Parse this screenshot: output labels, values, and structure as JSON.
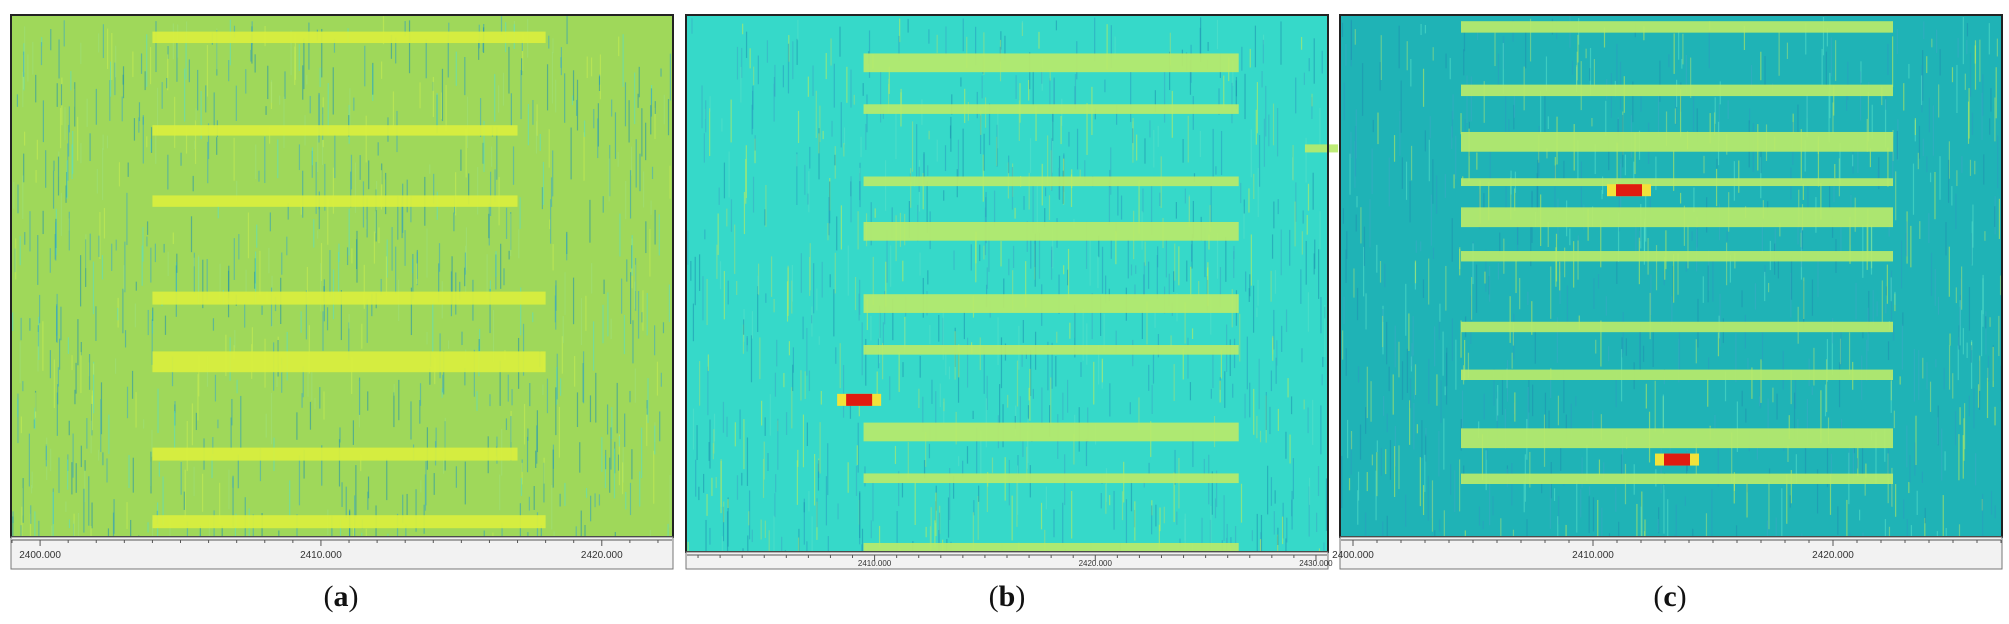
{
  "captions": [
    {
      "open": "(",
      "letter": "a",
      "close": ")"
    },
    {
      "open": "(",
      "letter": "b",
      "close": ")"
    },
    {
      "open": "(",
      "letter": "c",
      "close": ")"
    }
  ],
  "chart_data": [
    {
      "type": "heatmap",
      "panel": "a",
      "background": "#9fd85a",
      "xaxis": {
        "ticks": [
          2400,
          2410,
          2420
        ],
        "tick_labels": [
          "2400.000",
          "2410.000",
          "2420.000"
        ],
        "xlim": [
          2399,
          2422.5
        ]
      },
      "bands": [
        {
          "x0": 2404,
          "x1": 2418,
          "t": 0.03,
          "h": 0.022
        },
        {
          "x0": 2404,
          "x1": 2417,
          "t": 0.21,
          "h": 0.02
        },
        {
          "x0": 2404,
          "x1": 2417,
          "t": 0.345,
          "h": 0.022
        },
        {
          "x0": 2404,
          "x1": 2418,
          "t": 0.53,
          "h": 0.025
        },
        {
          "x0": 2404,
          "x1": 2418,
          "t": 0.645,
          "h": 0.04
        },
        {
          "x0": 2404,
          "x1": 2417,
          "t": 0.83,
          "h": 0.025
        },
        {
          "x0": 2404,
          "x1": 2418,
          "t": 0.96,
          "h": 0.025
        }
      ],
      "hotspots": []
    },
    {
      "type": "heatmap",
      "panel": "b",
      "background": "#36d9c9",
      "xaxis": {
        "ticks": [
          2410,
          2420,
          2430
        ],
        "tick_labels": [
          "2410.000",
          "2420.000",
          "2430.000"
        ],
        "xlim": [
          2401.5,
          2430.5
        ]
      },
      "bands": [
        {
          "x0": 2409.5,
          "x1": 2426.5,
          "t": 0.07,
          "h": 0.035
        },
        {
          "x0": 2409.5,
          "x1": 2426.5,
          "t": 0.165,
          "h": 0.018
        },
        {
          "x0": 2429.5,
          "x1": 2431,
          "t": 0.24,
          "h": 0.015
        },
        {
          "x0": 2409.5,
          "x1": 2426.5,
          "t": 0.3,
          "h": 0.018
        },
        {
          "x0": 2409.5,
          "x1": 2426.5,
          "t": 0.385,
          "h": 0.035
        },
        {
          "x0": 2409.5,
          "x1": 2426.5,
          "t": 0.52,
          "h": 0.035
        },
        {
          "x0": 2409.5,
          "x1": 2426.5,
          "t": 0.615,
          "h": 0.018
        },
        {
          "x0": 2409.5,
          "x1": 2426.5,
          "t": 0.76,
          "h": 0.035
        },
        {
          "x0": 2409.5,
          "x1": 2426.5,
          "t": 0.855,
          "h": 0.018
        },
        {
          "x0": 2409.5,
          "x1": 2426.5,
          "t": 0.985,
          "h": 0.015
        }
      ],
      "hotspots": [
        {
          "x": 2409.3,
          "t": 0.7175
        }
      ]
    },
    {
      "type": "heatmap",
      "panel": "c",
      "background": "#1fb3b6",
      "xaxis": {
        "ticks": [
          2400,
          2410,
          2420
        ],
        "tick_labels": [
          "2400.000",
          "2410.000",
          "2420.000"
        ],
        "xlim": [
          2399.5,
          2427
        ]
      },
      "bands": [
        {
          "x0": 2404.5,
          "x1": 2422.5,
          "t": 0.01,
          "h": 0.022
        },
        {
          "x0": 2404.5,
          "x1": 2422.5,
          "t": 0.132,
          "h": 0.022
        },
        {
          "x0": 2404.5,
          "x1": 2422.5,
          "t": 0.223,
          "h": 0.038
        },
        {
          "x0": 2404.5,
          "x1": 2422.5,
          "t": 0.312,
          "h": 0.015
        },
        {
          "x0": 2404.5,
          "x1": 2422.5,
          "t": 0.368,
          "h": 0.038
        },
        {
          "x0": 2404.5,
          "x1": 2422.5,
          "t": 0.452,
          "h": 0.02
        },
        {
          "x0": 2404.5,
          "x1": 2422.5,
          "t": 0.588,
          "h": 0.02
        },
        {
          "x0": 2404.5,
          "x1": 2422.5,
          "t": 0.68,
          "h": 0.02
        },
        {
          "x0": 2404.5,
          "x1": 2422.5,
          "t": 0.793,
          "h": 0.038
        },
        {
          "x0": 2404.5,
          "x1": 2422.5,
          "t": 0.88,
          "h": 0.02
        }
      ],
      "hotspots": [
        {
          "x": 2411.5,
          "t": 0.335
        },
        {
          "x": 2413.5,
          "t": 0.853
        }
      ]
    }
  ]
}
